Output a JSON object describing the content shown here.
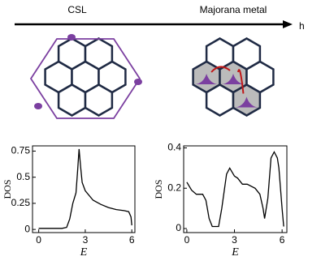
{
  "labels": {
    "left": "CSL",
    "right": "Majorana metal",
    "arrow": "h"
  },
  "chart_data": [
    {
      "type": "line",
      "xlabel": "E",
      "ylabel": "DOS",
      "x": [
        0,
        0.5,
        1,
        1.5,
        1.8,
        2,
        2.2,
        2.4,
        2.5,
        2.6,
        2.7,
        2.8,
        3,
        3.5,
        4,
        4.5,
        5,
        5.5,
        5.8,
        5.95,
        6
      ],
      "series": [
        {
          "color": "#000000",
          "values": [
            0.01,
            0.01,
            0.01,
            0.01,
            0.02,
            0.1,
            0.25,
            0.35,
            0.55,
            0.77,
            0.6,
            0.45,
            0.37,
            0.28,
            0.24,
            0.21,
            0.19,
            0.18,
            0.17,
            0.12,
            0.04
          ]
        }
      ],
      "xlim": [
        -0.4,
        6.2
      ],
      "ylim": [
        -0.03,
        0.8
      ],
      "xticks": [
        0,
        3,
        6
      ],
      "yticks": [
        0,
        0.25,
        0.5,
        0.75
      ]
    },
    {
      "type": "line",
      "xlabel": "E",
      "ylabel": "DOS",
      "x": [
        0,
        0.3,
        0.6,
        1,
        1.2,
        1.4,
        1.6,
        2,
        2.2,
        2.5,
        2.7,
        3,
        3.2,
        3.5,
        3.8,
        4.3,
        4.6,
        4.8,
        4.9,
        5.1,
        5.3,
        5.5,
        5.7,
        5.8,
        6,
        6.1
      ],
      "series": [
        {
          "color": "#000000",
          "values": [
            0.23,
            0.19,
            0.17,
            0.17,
            0.14,
            0.05,
            0.01,
            0.01,
            0.1,
            0.27,
            0.3,
            0.26,
            0.25,
            0.22,
            0.22,
            0.2,
            0.17,
            0.1,
            0.05,
            0.15,
            0.35,
            0.38,
            0.35,
            0.3,
            0.1,
            0.01
          ]
        }
      ],
      "xlim": [
        -0.2,
        6.3
      ],
      "ylim": [
        -0.02,
        0.41
      ],
      "xticks": [
        0,
        3,
        6
      ],
      "yticks": [
        0,
        0.2,
        0.4
      ]
    }
  ]
}
